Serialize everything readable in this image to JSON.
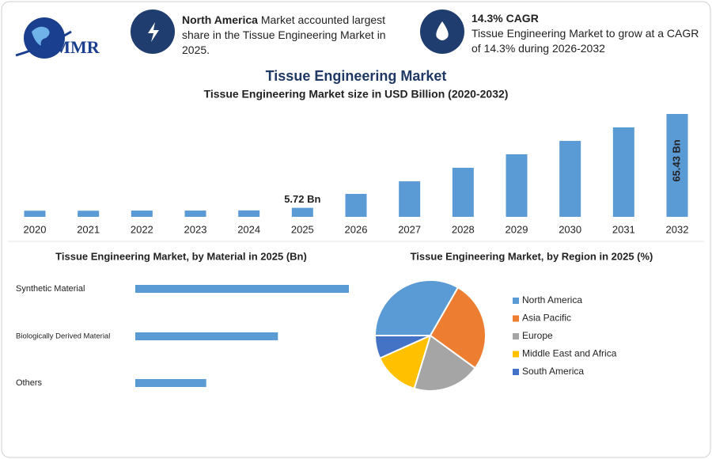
{
  "header": {
    "logo": "MMR",
    "highlights": [
      {
        "title": "North America",
        "text": "Market accounted largest share in the Tissue Engineering Market in 2025."
      },
      {
        "title": "14.3% CAGR",
        "text": "Tissue Engineering Market to grow at a CAGR of 14.3% during 2026-2032"
      }
    ]
  },
  "title": "Tissue Engineering Market",
  "chart_data": [
    {
      "type": "bar",
      "title": "Tissue Engineering Market size in USD Billion (2020-2032)",
      "categories": [
        "2020",
        "2021",
        "2022",
        "2023",
        "2024",
        "2025",
        "2026",
        "2027",
        "2028",
        "2029",
        "2030",
        "2031",
        "2032"
      ],
      "values": [
        3.9,
        3.9,
        4.0,
        4.0,
        4.1,
        5.72,
        14.6,
        22.6,
        31.2,
        39.8,
        48.3,
        56.9,
        65.43
      ],
      "value_labels": [
        null,
        null,
        null,
        null,
        null,
        "5.72 Bn",
        null,
        null,
        null,
        null,
        null,
        null,
        "65.43 Bn"
      ],
      "color": "#5b9bd5"
    },
    {
      "type": "hbar",
      "title": "Tissue Engineering Market, by Material in 2025 (Bn)",
      "categories": [
        "Synthetic Material",
        "Biologically Derived Material",
        "Others"
      ],
      "values": [
        2.86,
        1.91,
        0.95
      ],
      "color": "#5b9bd5"
    },
    {
      "type": "pie",
      "title": "Tissue Engineering Market, by Region in 2025 (%)",
      "categories": [
        "North America",
        "Asia Pacific",
        "Europe",
        "Middle East and Africa",
        "South America"
      ],
      "values": [
        33.3,
        26.7,
        19.7,
        13.6,
        6.7
      ],
      "colors": [
        "#5b9bd5",
        "#ed7d31",
        "#a5a5a5",
        "#ffc000",
        "#4472c4"
      ],
      "legend": "right"
    }
  ]
}
